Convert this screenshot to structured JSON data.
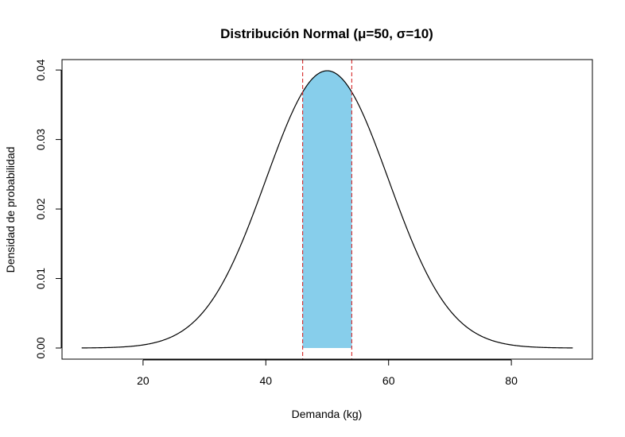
{
  "chart_data": {
    "type": "area",
    "title": "Distribución Normal (μ=50, σ=10)",
    "xlabel": "Demanda (kg)",
    "ylabel": "Densidad de probabilidad",
    "distribution": {
      "mean": 50,
      "sd": 10
    },
    "x_range": [
      10,
      90
    ],
    "xlim": [
      6.8,
      93.2
    ],
    "ylim": [
      -0.0016,
      0.0415
    ],
    "x_ticks": [
      "20",
      "40",
      "60",
      "80"
    ],
    "y_ticks": [
      "0.00",
      "0.01",
      "0.02",
      "0.03",
      "0.04"
    ],
    "shaded_region": {
      "from": 46,
      "to": 54,
      "color": "#87CEEB"
    },
    "reference_lines": [
      {
        "x": 46,
        "color": "#d62728",
        "style": "dashed"
      },
      {
        "x": 54,
        "color": "#d62728",
        "style": "dashed"
      }
    ],
    "curve_color": "#000000",
    "grid": false,
    "legend": "none"
  }
}
